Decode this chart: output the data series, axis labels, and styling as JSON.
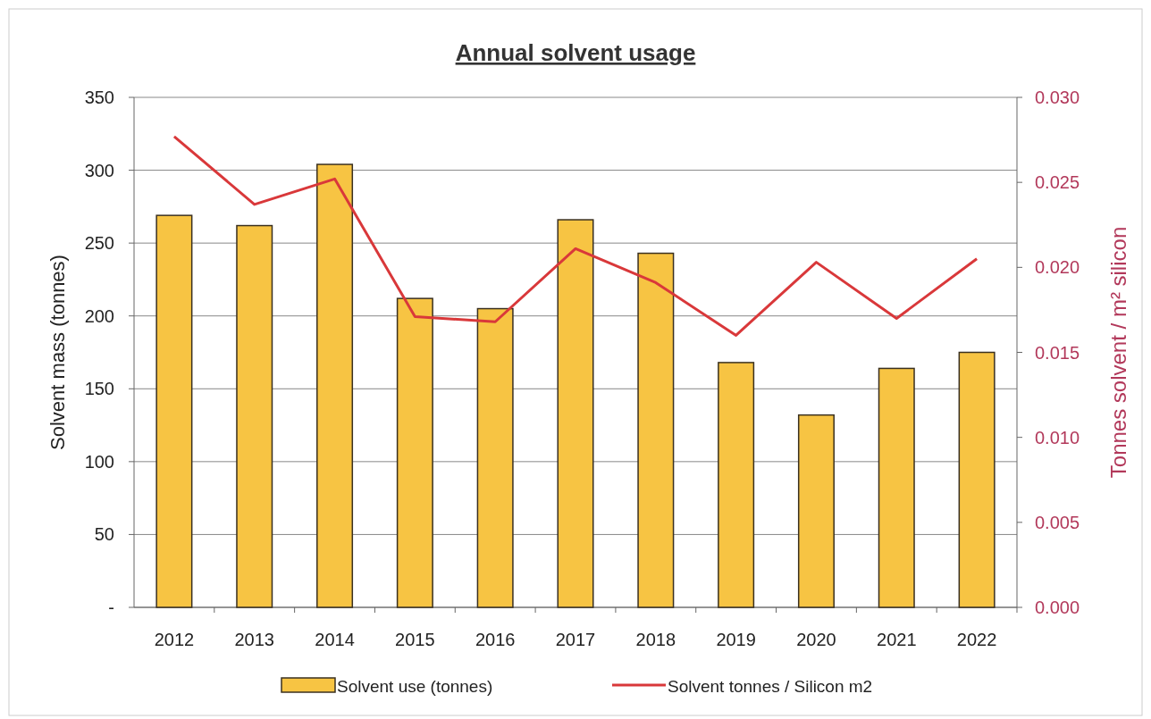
{
  "chart_data": {
    "type": "bar",
    "title": "Annual solvent usage",
    "ylabel": "Solvent mass (tonnes)",
    "y2label": "Tonnes  solvent / m² silicon",
    "categories": [
      "2012",
      "2013",
      "2014",
      "2015",
      "2016",
      "2017",
      "2018",
      "2019",
      "2020",
      "2021",
      "2022"
    ],
    "series": [
      {
        "name": "Solvent use (tonnes)",
        "color": "#f7c443",
        "values": [
          269,
          262,
          304,
          212,
          205,
          266,
          243,
          168,
          132,
          164,
          175
        ]
      },
      {
        "name": "Solvent tonnes / Silicon m2",
        "type": "line",
        "axis": "y2",
        "color": "#d9383a",
        "values": [
          0.0277,
          0.0237,
          0.0252,
          0.0171,
          0.0168,
          0.0211,
          0.0191,
          0.016,
          0.0203,
          0.017,
          0.0205
        ]
      }
    ],
    "ylim": [
      0,
      350
    ],
    "yticks": [
      {
        "value": 0,
        "label": "-"
      },
      50,
      100,
      150,
      200,
      250,
      300,
      350
    ],
    "y2lim": [
      0,
      0.03
    ],
    "y2ticks": [
      {
        "value": 0,
        "label": "0.000"
      },
      {
        "value": 0.005,
        "label": "0.005"
      },
      {
        "value": 0.01,
        "label": "0.010"
      },
      {
        "value": 0.015,
        "label": "0.015"
      },
      {
        "value": 0.02,
        "label": "0.020"
      },
      {
        "value": 0.025,
        "label": "0.025"
      },
      {
        "value": 0.03,
        "label": "0.030"
      }
    ],
    "grid": "y",
    "legend": "bottom",
    "marker": "none",
    "line_style": "solid"
  }
}
